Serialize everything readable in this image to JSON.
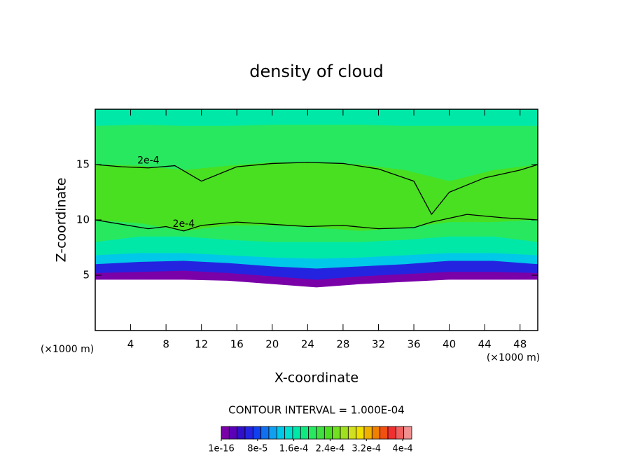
{
  "chart_data": {
    "type": "contour",
    "title": "density of cloud",
    "x_label": "X-coordinate",
    "y_label": "Z-coordinate",
    "x_unit_left": "(×1000 m)",
    "x_unit_right": "(×1000 m)",
    "contour_interval": "CONTOUR INTERVAL = 1.000E-04",
    "xlim": [
      0,
      50
    ],
    "ylim": [
      0,
      20
    ],
    "xticks": [
      4,
      8,
      12,
      16,
      20,
      24,
      28,
      32,
      36,
      40,
      44,
      48
    ],
    "yticks": [
      5,
      10,
      15
    ],
    "x": [
      0,
      5,
      10,
      15,
      20,
      25,
      30,
      35,
      40,
      45,
      50
    ],
    "layers": [
      {
        "value": 2e-05,
        "color": "#7a00a8",
        "bottom": [
          4.6,
          4.6,
          4.6,
          4.5,
          4.2,
          3.9,
          4.2,
          4.4,
          4.6,
          4.6,
          4.6
        ],
        "top": [
          20,
          20,
          20,
          20,
          20,
          20,
          20,
          20,
          20,
          20,
          20
        ]
      },
      {
        "value": 6e-05,
        "color": "#2424e0",
        "bottom": [
          5.2,
          5.3,
          5.4,
          5.2,
          4.9,
          4.6,
          4.9,
          5.1,
          5.3,
          5.3,
          5.2
        ],
        "top": [
          20,
          20,
          20,
          20,
          20,
          20,
          20,
          20,
          20,
          20,
          20
        ]
      },
      {
        "value": 0.00012,
        "color": "#00c8e8",
        "bottom": [
          6.0,
          6.2,
          6.3,
          6.1,
          5.8,
          5.6,
          5.8,
          6.0,
          6.3,
          6.3,
          6.0
        ],
        "top": [
          20,
          20,
          20,
          20,
          20,
          20,
          20,
          20,
          20,
          20,
          20
        ]
      },
      {
        "value": 0.00015,
        "color": "#00e8a8",
        "bottom": [
          6.8,
          7.0,
          7.0,
          6.8,
          6.6,
          6.5,
          6.6,
          6.8,
          7.0,
          7.0,
          6.8
        ],
        "top": [
          20,
          20,
          20,
          20,
          20,
          20,
          20,
          20,
          20,
          20,
          20
        ]
      },
      {
        "value": 0.00018,
        "color": "#28e860",
        "bottom": [
          8.0,
          8.5,
          8.5,
          8.2,
          8.0,
          8.0,
          8.0,
          8.2,
          8.5,
          8.5,
          8.0
        ],
        "top": [
          18.5,
          18.6,
          18.5,
          18.5,
          18.6,
          18.6,
          18.6,
          18.5,
          18.5,
          18.5,
          18.5
        ]
      },
      {
        "value": 0.00021,
        "color": "#48e020",
        "bottom": [
          10.0,
          9.7,
          9.0,
          9.5,
          9.5,
          9.3,
          9.0,
          9.3,
          9.8,
          9.8,
          10.0
        ],
        "top": [
          15.0,
          14.9,
          14.5,
          14.9,
          15.2,
          15.2,
          15.0,
          14.5,
          13.5,
          14.5,
          15.0
        ]
      }
    ],
    "contour_lines": [
      {
        "label": "2e-4",
        "x": [
          0,
          3,
          6,
          9,
          12,
          16,
          20,
          24,
          28,
          32,
          36,
          38,
          40,
          44,
          48,
          50
        ],
        "y": [
          15.0,
          14.8,
          14.7,
          14.9,
          13.5,
          14.8,
          15.1,
          15.2,
          15.1,
          14.6,
          13.5,
          10.5,
          12.5,
          13.8,
          14.5,
          15.0
        ]
      },
      {
        "label": "2e-4",
        "x": [
          0,
          3,
          6,
          8,
          10,
          12,
          16,
          20,
          24,
          28,
          32,
          36,
          38,
          42,
          46,
          50
        ],
        "y": [
          10.0,
          9.6,
          9.2,
          9.4,
          9.0,
          9.5,
          9.8,
          9.6,
          9.4,
          9.5,
          9.2,
          9.3,
          9.8,
          10.5,
          10.2,
          10.0
        ]
      }
    ],
    "colorbar": {
      "clim": [
        0,
        0.00042
      ],
      "colors": [
        "#7a00a8",
        "#5a00b8",
        "#3010c8",
        "#2424e0",
        "#1040f0",
        "#1070f0",
        "#10a0f0",
        "#00c8e8",
        "#00e0d0",
        "#00e8a8",
        "#10e880",
        "#28e860",
        "#40e040",
        "#48e020",
        "#70e020",
        "#a0e020",
        "#d0e020",
        "#f0e000",
        "#f0b000",
        "#f08000",
        "#f05010",
        "#f03030",
        "#f06060",
        "#f09090"
      ],
      "ticks": [
        {
          "value": 1e-16,
          "label": "1e-16"
        },
        {
          "value": 8e-05,
          "label": "8e-5"
        },
        {
          "value": 0.00016,
          "label": "1.6e-4"
        },
        {
          "value": 0.00024,
          "label": "2.4e-4"
        },
        {
          "value": 0.00032,
          "label": "3.2e-4"
        },
        {
          "value": 0.0004,
          "label": "4e-4"
        }
      ]
    }
  }
}
